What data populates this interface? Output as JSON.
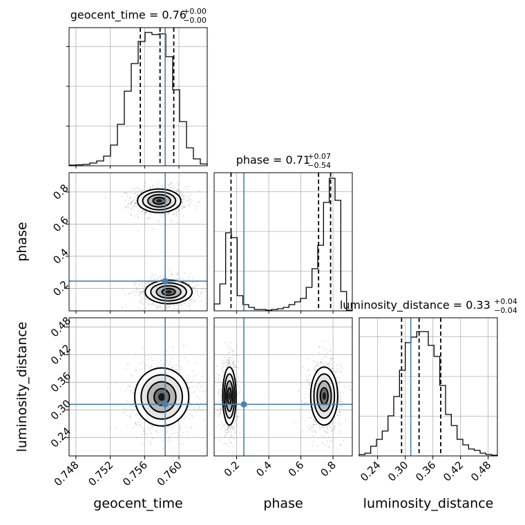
{
  "chart_data": {
    "type": "corner",
    "parameters": [
      {
        "name": "geocent_time",
        "label": "geocent_time",
        "title": {
          "text": "geocent_time = 0.76",
          "upper": "+0.00",
          "lower": "−0.00"
        },
        "range": [
          0.7472,
          0.7633
        ],
        "ticks": [
          0.748,
          0.752,
          0.756,
          0.76
        ],
        "tick_labels": [
          "0.748",
          "0.752",
          "0.756",
          "0.760"
        ],
        "truth": 0.7584,
        "quantiles": [
          0.7555,
          0.7578,
          0.7594
        ],
        "histogram": [
          0.005,
          0.007,
          0.01,
          0.02,
          0.035,
          0.07,
          0.15,
          0.3,
          0.54,
          0.74,
          0.9,
          0.965,
          0.95,
          0.955,
          0.79,
          0.55,
          0.32,
          0.13,
          0.05,
          0.013
        ]
      },
      {
        "name": "phase",
        "label": "phase",
        "title": {
          "text": "phase = 0.71",
          "upper": "+0.07",
          "lower": "−0.54"
        },
        "range": [
          0.06,
          0.92
        ],
        "ticks": [
          0.2,
          0.4,
          0.6,
          0.8
        ],
        "tick_labels": [
          "0.2",
          "0.4",
          "0.6",
          "0.8"
        ],
        "truth": 0.245,
        "quantiles": [
          0.165,
          0.71,
          0.785
        ],
        "histogram": [
          0.05,
          0.195,
          0.565,
          0.53,
          0.11,
          0.045,
          0.025,
          0.01,
          0.01,
          0.005,
          0.01,
          0.015,
          0.025,
          0.045,
          0.065,
          0.09,
          0.17,
          0.305,
          0.475,
          0.785,
          0.96,
          0.8,
          0.14,
          0.005
        ]
      },
      {
        "name": "luminosity_distance",
        "label": "luminosity_distance",
        "title": {
          "text": "luminosity_distance = 0.33",
          "upper": "+0.04",
          "lower": "−0.04"
        },
        "range": [
          0.2,
          0.5
        ],
        "ticks": [
          0.24,
          0.3,
          0.36,
          0.42,
          0.48
        ],
        "tick_labels": [
          "0.24",
          "0.30",
          "0.36",
          "0.42",
          "0.48"
        ],
        "truth": 0.312,
        "quantiles": [
          0.292,
          0.33,
          0.377
        ],
        "histogram": [
          0.01,
          0.02,
          0.07,
          0.12,
          0.18,
          0.29,
          0.43,
          0.62,
          0.82,
          0.86,
          0.9,
          0.9,
          0.8,
          0.72,
          0.51,
          0.3,
          0.22,
          0.12,
          0.08,
          0.05,
          0.04,
          0.02,
          0.01,
          0.005
        ]
      }
    ],
    "pairs": [
      {
        "x": "geocent_time",
        "y": "phase",
        "modes": [
          {
            "x": 0.7577,
            "y": 0.745,
            "sx": 0.0012,
            "sy": 0.035
          },
          {
            "x": 0.7588,
            "y": 0.178,
            "sx": 0.0013,
            "sy": 0.035
          }
        ]
      },
      {
        "x": "geocent_time",
        "y": "luminosity_distance",
        "modes": [
          {
            "x": 0.758,
            "y": 0.328,
            "sx": 0.0015,
            "sy": 0.03
          }
        ]
      },
      {
        "x": "phase",
        "y": "luminosity_distance",
        "modes": [
          {
            "x": 0.155,
            "y": 0.33,
            "sx": 0.02,
            "sy": 0.03
          },
          {
            "x": 0.745,
            "y": 0.33,
            "sx": 0.04,
            "sy": 0.03
          }
        ]
      }
    ],
    "grid": true,
    "colors": {
      "truth": "#4682b4",
      "contour": "#000000",
      "samples": "#808080"
    }
  }
}
